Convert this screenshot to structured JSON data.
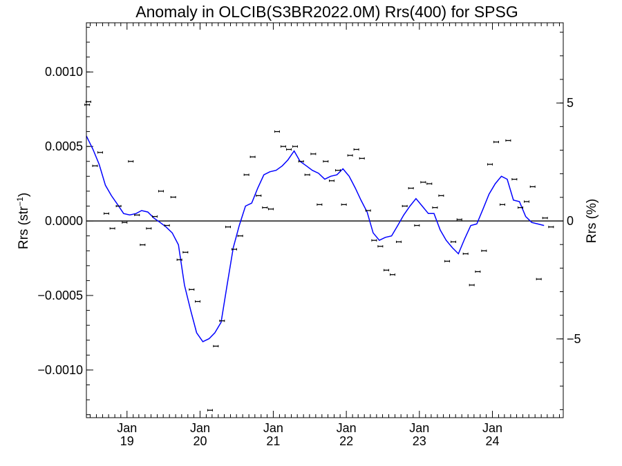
{
  "chart_data": {
    "type": "scatter",
    "title": "Anomaly in OLCIB(S3BR2022.0M) Rrs(400) for SPSG",
    "ylabel": "Rrs (str",
    "ylabel_sup": "−1",
    "ylabel_close": ")",
    "y2label": "Rrs (%)",
    "xlim": [
      "2018-06-12",
      "2024-12-20"
    ],
    "ylim": [
      -0.00132,
      0.00133
    ],
    "y2lim": [
      -8.34,
      8.4
    ],
    "grid": false,
    "legend": "none",
    "colors": {
      "trend": "#0000ff",
      "points": "#000000",
      "zero_line": "#000000"
    },
    "y_ticks": [
      {
        "value": 0.001,
        "label": "0.0010"
      },
      {
        "value": 0.0005,
        "label": "0.0005"
      },
      {
        "value": 0.0,
        "label": "0.0000"
      },
      {
        "value": -0.0005,
        "label": "−0.0005"
      },
      {
        "value": -0.001,
        "label": "−0.0010"
      }
    ],
    "y_minor_step": 0.0001,
    "y2_ticks": [
      {
        "value": 5,
        "label": "5"
      },
      {
        "value": 0,
        "label": "0"
      },
      {
        "value": -5,
        "label": "−5"
      }
    ],
    "y2_minor_step": 1,
    "x_ticks": [
      {
        "date": "2019-01-01",
        "month": "Jan",
        "year": "19"
      },
      {
        "date": "2020-01-01",
        "month": "Jan",
        "year": "20"
      },
      {
        "date": "2021-01-01",
        "month": "Jan",
        "year": "21"
      },
      {
        "date": "2022-01-01",
        "month": "Jan",
        "year": "22"
      },
      {
        "date": "2023-01-01",
        "month": "Jan",
        "year": "23"
      },
      {
        "date": "2024-01-01",
        "month": "Jan",
        "year": "24"
      }
    ],
    "points": [
      {
        "x": "2018-06-16",
        "y": 0.00078
      },
      {
        "x": "2018-06-22",
        "y": 0.0008
      },
      {
        "x": "2018-07-25",
        "y": 0.00037
      },
      {
        "x": "2018-08-20",
        "y": 0.00046
      },
      {
        "x": "2018-09-20",
        "y": 5e-05
      },
      {
        "x": "2018-10-20",
        "y": -5e-05
      },
      {
        "x": "2018-11-20",
        "y": 0.0001
      },
      {
        "x": "2018-12-20",
        "y": -1e-05
      },
      {
        "x": "2019-01-20",
        "y": 0.0004
      },
      {
        "x": "2019-02-20",
        "y": 4e-05
      },
      {
        "x": "2019-03-20",
        "y": -0.00016
      },
      {
        "x": "2019-04-20",
        "y": -5e-05
      },
      {
        "x": "2019-05-20",
        "y": 3e-05
      },
      {
        "x": "2019-06-20",
        "y": 0.0002
      },
      {
        "x": "2019-07-20",
        "y": -3e-05
      },
      {
        "x": "2019-08-20",
        "y": 0.00016
      },
      {
        "x": "2019-09-20",
        "y": -0.00026
      },
      {
        "x": "2019-10-20",
        "y": -0.00021
      },
      {
        "x": "2019-11-20",
        "y": -0.00046
      },
      {
        "x": "2019-12-20",
        "y": -0.00054
      },
      {
        "x": "2020-02-20",
        "y": -0.00127
      },
      {
        "x": "2020-03-20",
        "y": -0.00084
      },
      {
        "x": "2020-04-20",
        "y": -0.00067
      },
      {
        "x": "2020-05-20",
        "y": -4e-05
      },
      {
        "x": "2020-06-20",
        "y": -0.00019
      },
      {
        "x": "2020-07-20",
        "y": -0.0001
      },
      {
        "x": "2020-08-20",
        "y": 0.00031
      },
      {
        "x": "2020-09-20",
        "y": 0.00043
      },
      {
        "x": "2020-10-20",
        "y": 0.00017
      },
      {
        "x": "2020-11-20",
        "y": 9e-05
      },
      {
        "x": "2020-12-20",
        "y": 8e-05
      },
      {
        "x": "2021-01-20",
        "y": 0.0006
      },
      {
        "x": "2021-02-20",
        "y": 0.0005
      },
      {
        "x": "2021-03-20",
        "y": 0.00048
      },
      {
        "x": "2021-04-20",
        "y": 0.0005
      },
      {
        "x": "2021-05-20",
        "y": 0.0004
      },
      {
        "x": "2021-06-20",
        "y": 0.00031
      },
      {
        "x": "2021-07-20",
        "y": 0.00045
      },
      {
        "x": "2021-08-20",
        "y": 0.00011
      },
      {
        "x": "2021-09-20",
        "y": 0.0004
      },
      {
        "x": "2021-10-20",
        "y": 0.00027
      },
      {
        "x": "2021-11-20",
        "y": 0.00034
      },
      {
        "x": "2021-12-20",
        "y": 0.00011
      },
      {
        "x": "2022-01-20",
        "y": 0.00044
      },
      {
        "x": "2022-02-20",
        "y": 0.00048
      },
      {
        "x": "2022-03-20",
        "y": 0.00042
      },
      {
        "x": "2022-04-20",
        "y": 7e-05
      },
      {
        "x": "2022-05-20",
        "y": -0.00013
      },
      {
        "x": "2022-06-20",
        "y": -0.00017
      },
      {
        "x": "2022-07-20",
        "y": -0.00033
      },
      {
        "x": "2022-08-20",
        "y": -0.00036
      },
      {
        "x": "2022-09-20",
        "y": -0.00014
      },
      {
        "x": "2022-10-20",
        "y": 0.0001
      },
      {
        "x": "2022-11-20",
        "y": 0.00022
      },
      {
        "x": "2022-12-20",
        "y": -3e-05
      },
      {
        "x": "2023-01-20",
        "y": 0.00026
      },
      {
        "x": "2023-02-20",
        "y": 0.00025
      },
      {
        "x": "2023-03-20",
        "y": 9e-05
      },
      {
        "x": "2023-04-20",
        "y": 0.00017
      },
      {
        "x": "2023-05-20",
        "y": -0.00027
      },
      {
        "x": "2023-06-20",
        "y": -0.00014
      },
      {
        "x": "2023-07-20",
        "y": 1e-05
      },
      {
        "x": "2023-08-20",
        "y": -0.00022
      },
      {
        "x": "2023-09-20",
        "y": -0.00043
      },
      {
        "x": "2023-10-20",
        "y": -0.00034
      },
      {
        "x": "2023-11-20",
        "y": -0.0002
      },
      {
        "x": "2023-12-20",
        "y": 0.00038
      },
      {
        "x": "2024-01-20",
        "y": 0.00053
      },
      {
        "x": "2024-02-20",
        "y": 0.00011
      },
      {
        "x": "2024-03-20",
        "y": 0.00054
      },
      {
        "x": "2024-04-20",
        "y": 0.00028
      },
      {
        "x": "2024-05-20",
        "y": 9e-05
      },
      {
        "x": "2024-06-20",
        "y": 0.00013
      },
      {
        "x": "2024-07-20",
        "y": 0.00023
      },
      {
        "x": "2024-08-20",
        "y": -0.00039
      },
      {
        "x": "2024-09-20",
        "y": 2e-05
      },
      {
        "x": "2024-10-20",
        "y": -4e-05
      }
    ],
    "trend": [
      {
        "x": "2018-06-12",
        "y": 0.00057
      },
      {
        "x": "2018-07-15",
        "y": 0.00048
      },
      {
        "x": "2018-08-15",
        "y": 0.00038
      },
      {
        "x": "2018-09-15",
        "y": 0.00024
      },
      {
        "x": "2018-10-15",
        "y": 0.00017
      },
      {
        "x": "2018-11-15",
        "y": 0.00011
      },
      {
        "x": "2018-12-15",
        "y": 5e-05
      },
      {
        "x": "2019-01-15",
        "y": 4e-05
      },
      {
        "x": "2019-02-15",
        "y": 5e-05
      },
      {
        "x": "2019-03-15",
        "y": 7e-05
      },
      {
        "x": "2019-04-15",
        "y": 6e-05
      },
      {
        "x": "2019-05-15",
        "y": 2e-05
      },
      {
        "x": "2019-06-15",
        "y": -1e-05
      },
      {
        "x": "2019-07-15",
        "y": -4e-05
      },
      {
        "x": "2019-08-15",
        "y": -8e-05
      },
      {
        "x": "2019-09-15",
        "y": -0.00016
      },
      {
        "x": "2019-10-15",
        "y": -0.00043
      },
      {
        "x": "2019-11-15",
        "y": -0.0006
      },
      {
        "x": "2019-12-15",
        "y": -0.00075
      },
      {
        "x": "2020-01-15",
        "y": -0.00081
      },
      {
        "x": "2020-02-15",
        "y": -0.00079
      },
      {
        "x": "2020-03-15",
        "y": -0.00075
      },
      {
        "x": "2020-04-15",
        "y": -0.00068
      },
      {
        "x": "2020-05-15",
        "y": -0.00043
      },
      {
        "x": "2020-06-15",
        "y": -0.00018
      },
      {
        "x": "2020-07-15",
        "y": -3e-05
      },
      {
        "x": "2020-08-15",
        "y": 0.0001
      },
      {
        "x": "2020-09-15",
        "y": 0.00012
      },
      {
        "x": "2020-10-15",
        "y": 0.00022
      },
      {
        "x": "2020-11-15",
        "y": 0.00031
      },
      {
        "x": "2020-12-15",
        "y": 0.00033
      },
      {
        "x": "2021-01-15",
        "y": 0.00034
      },
      {
        "x": "2021-02-15",
        "y": 0.00037
      },
      {
        "x": "2021-03-15",
        "y": 0.00041
      },
      {
        "x": "2021-04-15",
        "y": 0.00047
      },
      {
        "x": "2021-05-15",
        "y": 0.0004
      },
      {
        "x": "2021-06-15",
        "y": 0.00037
      },
      {
        "x": "2021-07-15",
        "y": 0.00034
      },
      {
        "x": "2021-08-15",
        "y": 0.00032
      },
      {
        "x": "2021-09-15",
        "y": 0.00028
      },
      {
        "x": "2021-10-15",
        "y": 0.0003
      },
      {
        "x": "2021-11-15",
        "y": 0.00031
      },
      {
        "x": "2021-12-15",
        "y": 0.00035
      },
      {
        "x": "2022-01-15",
        "y": 0.0003
      },
      {
        "x": "2022-02-15",
        "y": 0.00022
      },
      {
        "x": "2022-03-15",
        "y": 0.00014
      },
      {
        "x": "2022-04-15",
        "y": 6e-05
      },
      {
        "x": "2022-05-15",
        "y": -8e-05
      },
      {
        "x": "2022-06-15",
        "y": -0.00013
      },
      {
        "x": "2022-07-15",
        "y": -0.00011
      },
      {
        "x": "2022-08-15",
        "y": -0.0001
      },
      {
        "x": "2022-09-15",
        "y": -3e-05
      },
      {
        "x": "2022-10-15",
        "y": 4e-05
      },
      {
        "x": "2022-11-15",
        "y": 0.0001
      },
      {
        "x": "2022-12-15",
        "y": 0.00015
      },
      {
        "x": "2023-01-15",
        "y": 0.0001
      },
      {
        "x": "2023-02-15",
        "y": 5e-05
      },
      {
        "x": "2023-03-15",
        "y": 5e-05
      },
      {
        "x": "2023-04-15",
        "y": -6e-05
      },
      {
        "x": "2023-05-15",
        "y": -0.00013
      },
      {
        "x": "2023-06-15",
        "y": -0.00018
      },
      {
        "x": "2023-07-15",
        "y": -0.00022
      },
      {
        "x": "2023-08-15",
        "y": -0.00012
      },
      {
        "x": "2023-09-15",
        "y": -3e-05
      },
      {
        "x": "2023-10-15",
        "y": -2e-05
      },
      {
        "x": "2023-11-15",
        "y": 8e-05
      },
      {
        "x": "2023-12-15",
        "y": 0.00018
      },
      {
        "x": "2024-01-15",
        "y": 0.00025
      },
      {
        "x": "2024-02-15",
        "y": 0.0003
      },
      {
        "x": "2024-03-15",
        "y": 0.00028
      },
      {
        "x": "2024-04-15",
        "y": 0.00014
      },
      {
        "x": "2024-05-15",
        "y": 0.00013
      },
      {
        "x": "2024-06-15",
        "y": 3e-05
      },
      {
        "x": "2024-07-15",
        "y": -1e-05
      },
      {
        "x": "2024-08-15",
        "y": -2e-05
      },
      {
        "x": "2024-09-15",
        "y": -3e-05
      }
    ]
  }
}
